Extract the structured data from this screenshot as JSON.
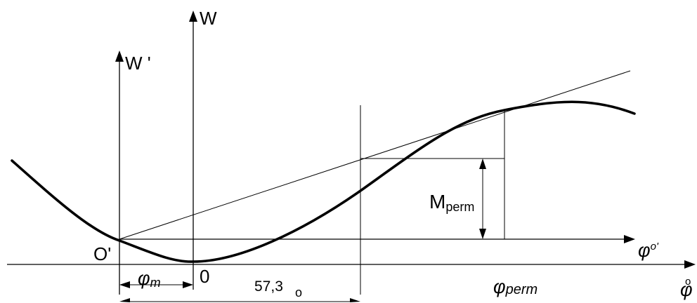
{
  "labels": {
    "w_axis": "W",
    "w_prime_axis": "W '",
    "origin_prime": "O'",
    "origin": "0",
    "phi_m": "φm",
    "phi_m_sub": "m",
    "angle_value": "57,3",
    "angle_degree_mark": "o",
    "m_perm": "Mperm",
    "m_perm_sub": "perm",
    "phi_perm": "φperm",
    "phi_perm_sub": "perm",
    "phi_o_prime_axis": "φo'",
    "phi_o_prime_sup": "o'",
    "phi_o_axis": "φo",
    "phi_o_sup": "o"
  },
  "colors": {
    "ink": "#000000",
    "background": "#ffffff"
  }
}
